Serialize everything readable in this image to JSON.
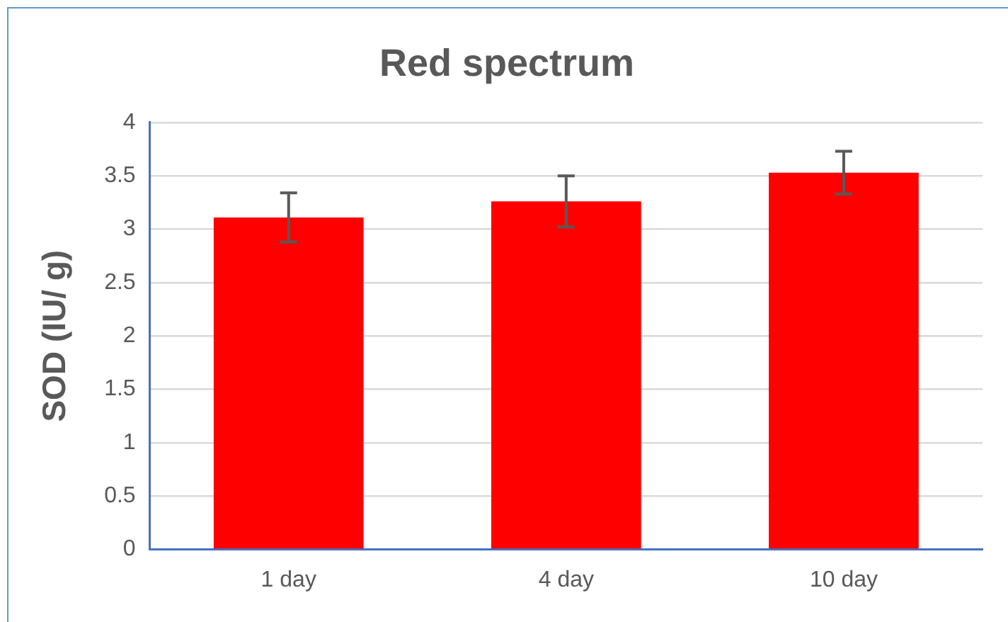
{
  "chart_data": {
    "type": "bar",
    "title": "Red spectrum",
    "ylabel": "SOD (IU/ g)",
    "categories": [
      "1 day",
      "4 day",
      "10 day"
    ],
    "values": [
      3.11,
      3.26,
      3.53
    ],
    "errors": [
      0.23,
      0.24,
      0.2
    ],
    "color": "#ff0000",
    "ylim": [
      0,
      4
    ],
    "yticks": [
      0,
      0.5,
      1,
      1.5,
      2,
      2.5,
      3,
      3.5,
      4
    ],
    "grid": "y"
  }
}
